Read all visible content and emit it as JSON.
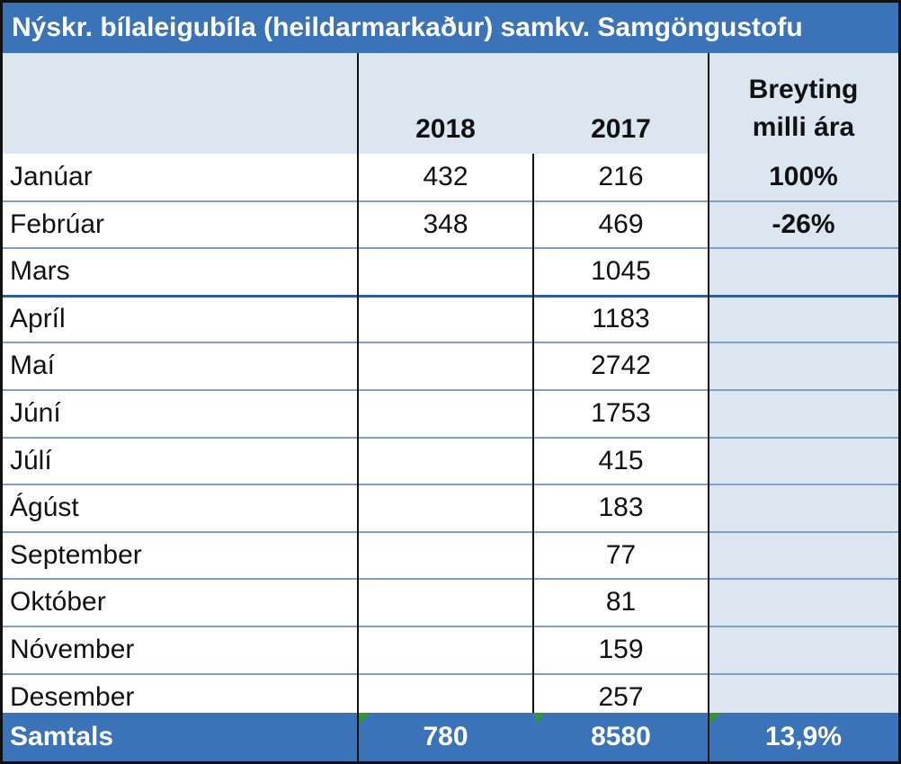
{
  "title": "Nýskr. bílaleigubíla (heildarmarkaður) samkv. Samgöngustofu",
  "columns": {
    "year_2018": "2018",
    "year_2017": "2017",
    "change_line1": "Breyting",
    "change_line2": "milli ára"
  },
  "rows": [
    {
      "month": "Janúar",
      "v2018": "432",
      "v2017": "216",
      "change": "100%"
    },
    {
      "month": "Febrúar",
      "v2018": "348",
      "v2017": "469",
      "change": "-26%"
    },
    {
      "month": "Mars",
      "v2018": "",
      "v2017": "1045",
      "change": ""
    },
    {
      "month": "Apríl",
      "v2018": "",
      "v2017": "1183",
      "change": ""
    },
    {
      "month": "Maí",
      "v2018": "",
      "v2017": "2742",
      "change": ""
    },
    {
      "month": "Júní",
      "v2018": "",
      "v2017": "1753",
      "change": ""
    },
    {
      "month": "Júlí",
      "v2018": "",
      "v2017": "415",
      "change": ""
    },
    {
      "month": "Ágúst",
      "v2018": "",
      "v2017": "183",
      "change": ""
    },
    {
      "month": "September",
      "v2018": "",
      "v2017": "77",
      "change": ""
    },
    {
      "month": "Október",
      "v2018": "",
      "v2017": "81",
      "change": ""
    },
    {
      "month": "Nóvember",
      "v2018": "",
      "v2017": "159",
      "change": ""
    },
    {
      "month": "Desember",
      "v2018": "",
      "v2017": "257",
      "change": ""
    }
  ],
  "total": {
    "label": "Samtals",
    "v2018": "780",
    "v2017": "8580",
    "change": "13,9%"
  },
  "colors": {
    "header_blue": "#3a73b7",
    "light_blue": "#dce6f1",
    "error_triangle": "#2e9a2e"
  }
}
